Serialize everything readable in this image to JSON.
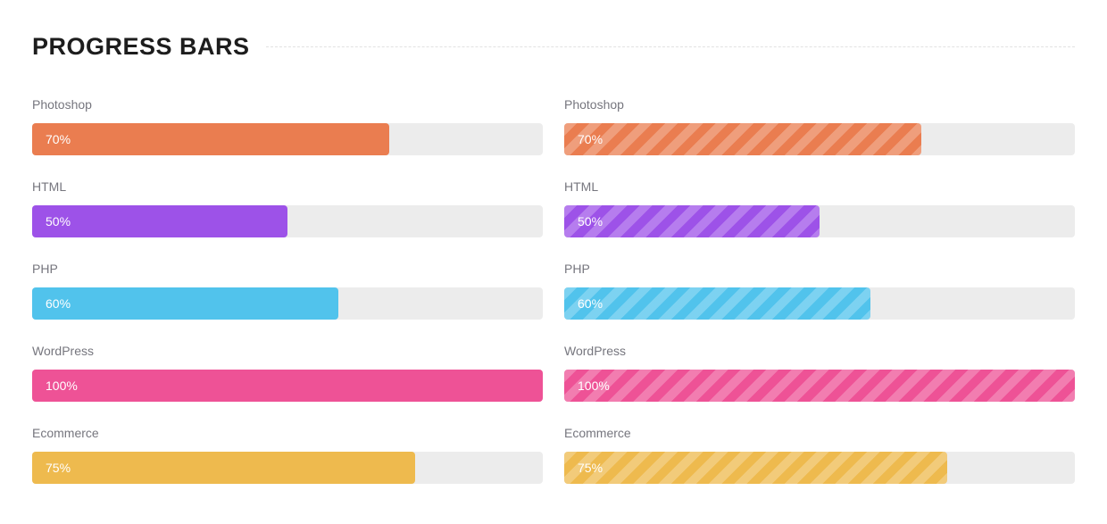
{
  "page": {
    "title": "PROGRESS BARS"
  },
  "theme": {
    "background": "#ffffff",
    "title_color": "#1d1d1d",
    "divider_color": "#e2e2e2",
    "label_color": "#76767e",
    "track_color": "#ececec",
    "value_text_color": "#ffffff"
  },
  "chart_data": {
    "type": "bar",
    "title": "PROGRESS BARS",
    "categories": [
      "Photoshop",
      "HTML",
      "PHP",
      "WordPress",
      "Ecommerce"
    ],
    "series": [
      {
        "name": "solid",
        "values": [
          70,
          50,
          60,
          100,
          75
        ]
      },
      {
        "name": "striped",
        "values": [
          70,
          50,
          60,
          100,
          75
        ]
      }
    ],
    "value_suffix": "%",
    "xlim": [
      0,
      100
    ]
  },
  "columns": [
    {
      "style": "solid",
      "bars": [
        {
          "label": "Photoshop",
          "value": 70,
          "value_text": "70%",
          "color": "#ea7d50"
        },
        {
          "label": "HTML",
          "value": 50,
          "value_text": "50%",
          "color": "#9d52e8"
        },
        {
          "label": "PHP",
          "value": 60,
          "value_text": "60%",
          "color": "#51c3ec"
        },
        {
          "label": "WordPress",
          "value": 100,
          "value_text": "100%",
          "color": "#ee5296"
        },
        {
          "label": "Ecommerce",
          "value": 75,
          "value_text": "75%",
          "color": "#eeba4e"
        }
      ]
    },
    {
      "style": "striped",
      "bars": [
        {
          "label": "Photoshop",
          "value": 70,
          "value_text": "70%",
          "color": "#ea7d50"
        },
        {
          "label": "HTML",
          "value": 50,
          "value_text": "50%",
          "color": "#9d52e8"
        },
        {
          "label": "PHP",
          "value": 60,
          "value_text": "60%",
          "color": "#51c3ec"
        },
        {
          "label": "WordPress",
          "value": 100,
          "value_text": "100%",
          "color": "#ee5296"
        },
        {
          "label": "Ecommerce",
          "value": 75,
          "value_text": "75%",
          "color": "#eeba4e"
        }
      ]
    }
  ]
}
